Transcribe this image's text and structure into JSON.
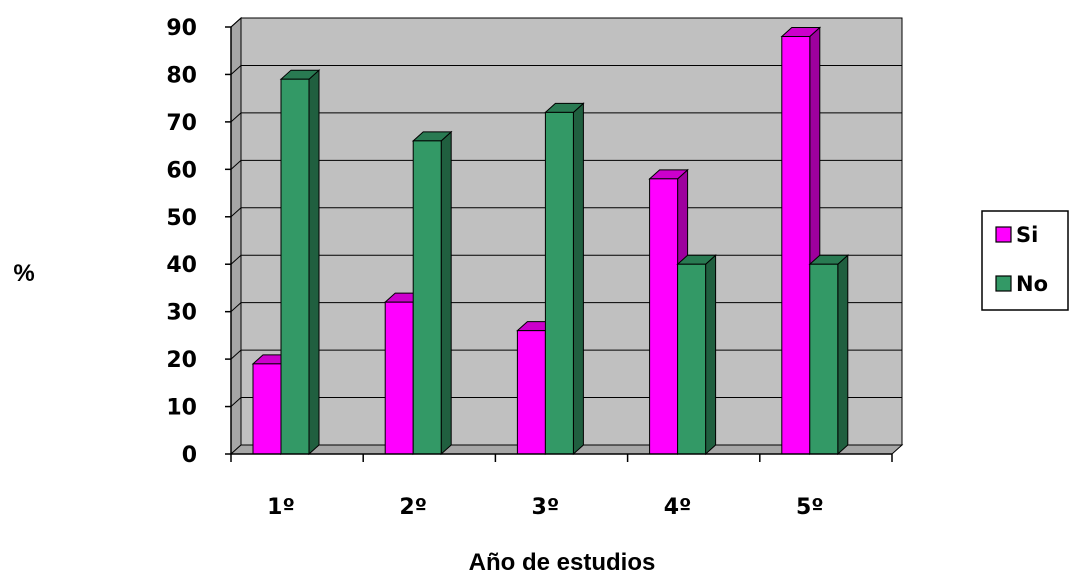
{
  "chart_data": {
    "type": "bar",
    "title": "",
    "xlabel": "Año de estudios",
    "ylabel": "%",
    "categories": [
      "1º",
      "2º",
      "3º",
      "4º",
      "5º"
    ],
    "yticks": [
      "0",
      "10",
      "20",
      "30",
      "40",
      "50",
      "60",
      "70",
      "80",
      "90"
    ],
    "ylim": [
      0,
      90
    ],
    "grid": true,
    "legend_position": "right",
    "style": "3d-clustered-column",
    "series": [
      {
        "name": "Si",
        "color": "#ff00ff",
        "values": [
          19,
          32,
          26,
          58,
          88
        ]
      },
      {
        "name": "No",
        "color": "#339966",
        "values": [
          79,
          66,
          72,
          40,
          40
        ]
      }
    ]
  }
}
